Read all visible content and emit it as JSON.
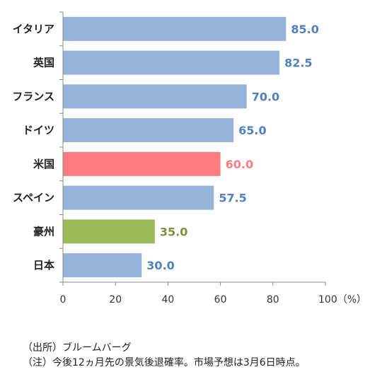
{
  "chart_data": {
    "type": "bar",
    "orientation": "horizontal",
    "categories": [
      "イタリア",
      "英国",
      "フランス",
      "ドイツ",
      "米国",
      "スペイン",
      "豪州",
      "日本"
    ],
    "values": [
      85.0,
      82.5,
      70.0,
      65.0,
      60.0,
      57.5,
      35.0,
      30.0
    ],
    "value_labels": [
      "85.0",
      "82.5",
      "70.0",
      "65.0",
      "60.0",
      "57.5",
      "35.0",
      "30.0"
    ],
    "colors": [
      "#95b3d7",
      "#95b3d7",
      "#95b3d7",
      "#95b3d7",
      "#ff7c80",
      "#95b3d7",
      "#9bbb59",
      "#95b3d7"
    ],
    "label_colors": [
      "#4f81bd",
      "#4f81bd",
      "#4f81bd",
      "#4f81bd",
      "#ff7c80",
      "#4f81bd",
      "#77933c",
      "#4f81bd"
    ],
    "xlim": [
      0,
      100
    ],
    "xticks": [
      0,
      20,
      40,
      60,
      80,
      100
    ],
    "xtick_labels": [
      "0",
      "20",
      "40",
      "60",
      "80",
      "100（%）"
    ],
    "grid": false,
    "legend": "none"
  },
  "notes": {
    "source": "（出所）ブルームバーグ",
    "note": "（注）今後12ヵ月先の景気後退確率。市場予想は3月6日時点。"
  }
}
